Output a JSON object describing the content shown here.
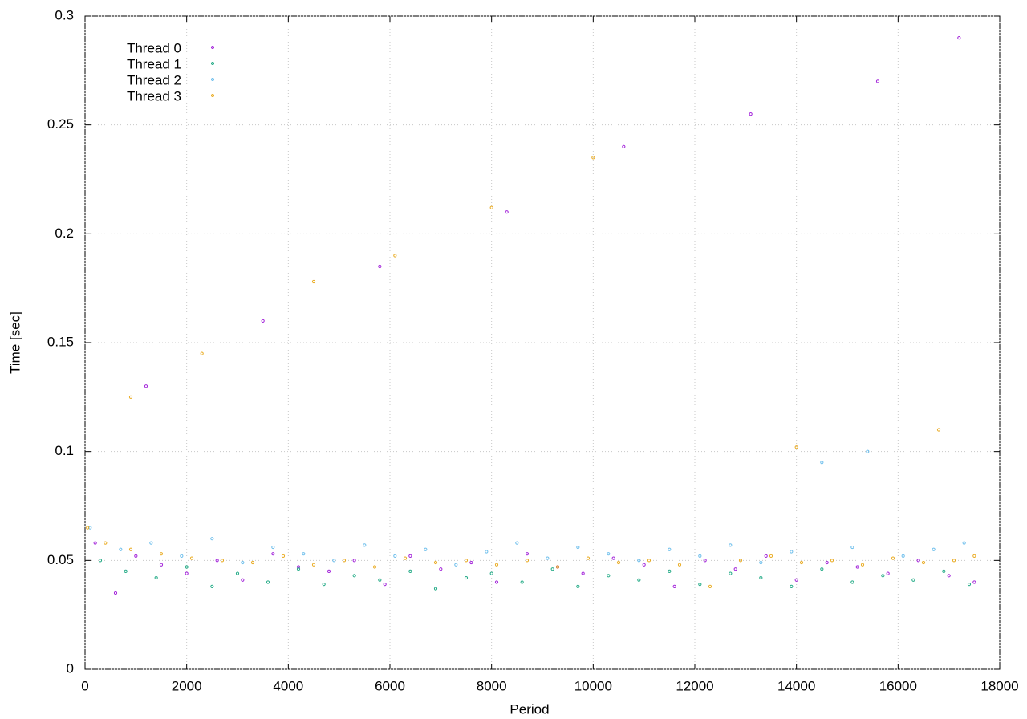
{
  "chart_data": {
    "type": "scatter",
    "x_label": "Period",
    "y_label": "Time [sec]",
    "xlim": [
      0,
      18000
    ],
    "ylim": [
      0,
      0.3
    ],
    "xticks": [
      0,
      2000,
      4000,
      6000,
      8000,
      10000,
      12000,
      14000,
      16000,
      18000
    ],
    "yticks": [
      0,
      0.05,
      0.1,
      0.15,
      0.2,
      0.25,
      0.3
    ],
    "grid": true,
    "legend": "top-left",
    "series": [
      {
        "name": "Thread 0",
        "color": "#9400d3",
        "x": [
          200,
          600,
          1000,
          1500,
          2000,
          2600,
          3100,
          3700,
          4200,
          4800,
          5300,
          5900,
          6400,
          7000,
          7600,
          8100,
          8700,
          9300,
          9800,
          10400,
          11000,
          11600,
          12200,
          12800,
          13400,
          14000,
          14600,
          15200,
          15800,
          16400,
          17000,
          17500,
          1200,
          3500,
          5800,
          8300,
          10600,
          13100,
          15600,
          17200
        ],
        "values": [
          0.058,
          0.035,
          0.052,
          0.048,
          0.044,
          0.05,
          0.041,
          0.053,
          0.047,
          0.045,
          0.05,
          0.039,
          0.052,
          0.046,
          0.049,
          0.04,
          0.053,
          0.047,
          0.044,
          0.051,
          0.048,
          0.038,
          0.05,
          0.046,
          0.052,
          0.041,
          0.049,
          0.047,
          0.044,
          0.05,
          0.043,
          0.04,
          0.13,
          0.16,
          0.185,
          0.21,
          0.24,
          0.255,
          0.27,
          0.29
        ]
      },
      {
        "name": "Thread 1",
        "color": "#009e73",
        "x": [
          300,
          800,
          1400,
          2000,
          2500,
          3000,
          3600,
          4200,
          4700,
          5300,
          5800,
          6400,
          6900,
          7500,
          8000,
          8600,
          9200,
          9700,
          10300,
          10900,
          11500,
          12100,
          12700,
          13300,
          13900,
          14500,
          15100,
          15700,
          16300,
          16900,
          17400
        ],
        "values": [
          0.05,
          0.045,
          0.042,
          0.047,
          0.038,
          0.044,
          0.04,
          0.046,
          0.039,
          0.043,
          0.041,
          0.045,
          0.037,
          0.042,
          0.044,
          0.04,
          0.046,
          0.038,
          0.043,
          0.041,
          0.045,
          0.039,
          0.044,
          0.042,
          0.038,
          0.046,
          0.04,
          0.043,
          0.041,
          0.045,
          0.039
        ]
      },
      {
        "name": "Thread 2",
        "color": "#56b4e9",
        "x": [
          100,
          700,
          1300,
          1900,
          2500,
          3100,
          3700,
          4300,
          4900,
          5500,
          6100,
          6700,
          7300,
          7900,
          8500,
          9100,
          9700,
          10300,
          10900,
          11500,
          12100,
          12700,
          13300,
          13900,
          14500,
          15100,
          15400,
          16100,
          16700,
          17300
        ],
        "values": [
          0.065,
          0.055,
          0.058,
          0.052,
          0.06,
          0.049,
          0.056,
          0.053,
          0.05,
          0.057,
          0.052,
          0.055,
          0.048,
          0.054,
          0.058,
          0.051,
          0.056,
          0.053,
          0.05,
          0.055,
          0.052,
          0.057,
          0.049,
          0.054,
          0.095,
          0.056,
          0.1,
          0.052,
          0.055,
          0.058
        ]
      },
      {
        "name": "Thread 3",
        "color": "#e69f00",
        "x": [
          50,
          400,
          900,
          1500,
          2100,
          2700,
          3300,
          3900,
          4500,
          5100,
          5700,
          6300,
          6900,
          7500,
          8100,
          8700,
          9300,
          9900,
          10500,
          11100,
          11700,
          12300,
          12900,
          13500,
          14100,
          14700,
          15300,
          15900,
          16500,
          17100,
          17500,
          900,
          2300,
          4500,
          6100,
          8000,
          10000,
          14000,
          16800
        ],
        "values": [
          0.065,
          0.058,
          0.055,
          0.053,
          0.051,
          0.05,
          0.049,
          0.052,
          0.048,
          0.05,
          0.047,
          0.051,
          0.049,
          0.05,
          0.048,
          0.05,
          0.047,
          0.051,
          0.049,
          0.05,
          0.048,
          0.038,
          0.05,
          0.052,
          0.049,
          0.05,
          0.048,
          0.051,
          0.049,
          0.05,
          0.052,
          0.125,
          0.145,
          0.178,
          0.19,
          0.212,
          0.235,
          0.102,
          0.11
        ]
      }
    ]
  }
}
